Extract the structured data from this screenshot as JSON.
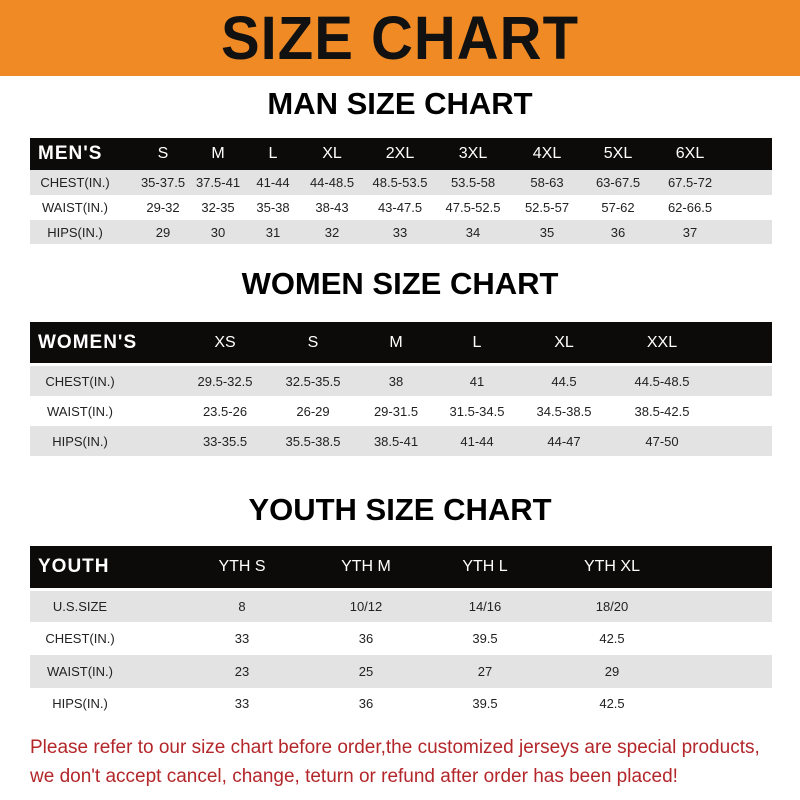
{
  "banner": "SIZE CHART",
  "men": {
    "title": "MAN SIZE CHART",
    "header": [
      "MEN'S",
      "S",
      "M",
      "L",
      "XL",
      "2XL",
      "3XL",
      "4XL",
      "5XL",
      "6XL"
    ],
    "rows": [
      [
        "CHEST(IN.)",
        "35-37.5",
        "37.5-41",
        "41-44",
        "44-48.5",
        "48.5-53.5",
        "53.5-58",
        "58-63",
        "63-67.5",
        "67.5-72"
      ],
      [
        "WAIST(IN.)",
        "29-32",
        "32-35",
        "35-38",
        "38-43",
        "43-47.5",
        "47.5-52.5",
        "52.5-57",
        "57-62",
        "62-66.5"
      ],
      [
        "HIPS(IN.)",
        "29",
        "30",
        "31",
        "32",
        "33",
        "34",
        "35",
        "36",
        "37"
      ]
    ]
  },
  "women": {
    "title": "WOMEN SIZE CHART",
    "header": [
      "WOMEN'S",
      "XS",
      "S",
      "M",
      "L",
      "XL",
      "XXL"
    ],
    "rows": [
      [
        "CHEST(IN.)",
        "29.5-32.5",
        "32.5-35.5",
        "38",
        "41",
        "44.5",
        "44.5-48.5"
      ],
      [
        "WAIST(IN.)",
        "23.5-26",
        "26-29",
        "29-31.5",
        "31.5-34.5",
        "34.5-38.5",
        "38.5-42.5"
      ],
      [
        "HIPS(IN.)",
        "33-35.5",
        "35.5-38.5",
        "38.5-41",
        "41-44",
        "44-47",
        "47-50"
      ]
    ]
  },
  "youth": {
    "title": "YOUTH SIZE CHART",
    "header": [
      "YOUTH",
      "YTH S",
      "YTH M",
      "YTH L",
      "YTH XL"
    ],
    "rows": [
      [
        "U.S.SIZE",
        "8",
        "10/12",
        "14/16",
        "18/20"
      ],
      [
        "CHEST(IN.)",
        "33",
        "36",
        "39.5",
        "42.5"
      ],
      [
        "WAIST(IN.)",
        "23",
        "25",
        "27",
        "29"
      ],
      [
        "HIPS(IN.)",
        "33",
        "36",
        "39.5",
        "42.5"
      ]
    ]
  },
  "footer": {
    "line1": "Please refer to our size chart before order,the customized jerseys are special products,",
    "line2": "we don't accept cancel, change, teturn or refund after order has been placed!"
  }
}
